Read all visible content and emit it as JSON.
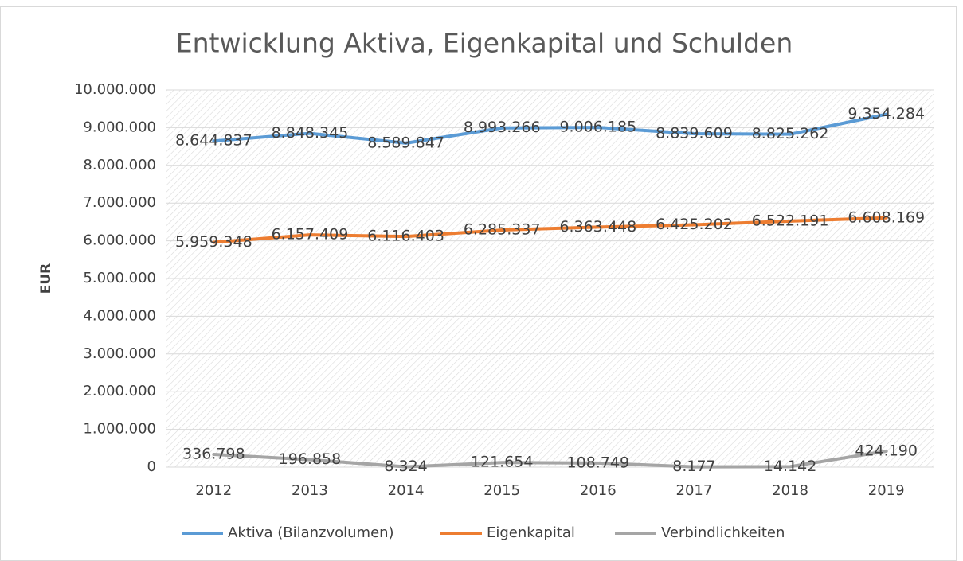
{
  "chart_data": {
    "type": "line",
    "title": "Entwicklung Aktiva, Eigenkapital und Schulden",
    "y_label": "EUR",
    "categories": [
      "2012",
      "2013",
      "2014",
      "2015",
      "2016",
      "2017",
      "2018",
      "2019"
    ],
    "series": [
      {
        "name": "Aktiva (Bilanzvolumen)",
        "color": "#5b9bd5",
        "values": [
          8644837,
          8848345,
          8589847,
          8993266,
          9006185,
          8839609,
          8825262,
          9354284
        ],
        "value_labels": [
          "8.644.837",
          "8.848.345",
          "8.589.847",
          "8.993.266",
          "9.006.185",
          "8.839.609",
          "8.825.262",
          "9.354.284"
        ]
      },
      {
        "name": "Eigenkapital",
        "color": "#ed7d31",
        "values": [
          5959348,
          6157409,
          6116403,
          6285337,
          6363448,
          6425202,
          6522191,
          6608169
        ],
        "value_labels": [
          "5.959.348",
          "6.157.409",
          "6.116.403",
          "6.285.337",
          "6.363.448",
          "6.425.202",
          "6.522.191",
          "6.608.169"
        ]
      },
      {
        "name": "Verbindlichkeiten",
        "color": "#a5a5a5",
        "values": [
          336798,
          196858,
          8324,
          121654,
          108749,
          8177,
          14142,
          424190
        ],
        "value_labels": [
          "336.798",
          "196.858",
          "8.324",
          "121.654",
          "108.749",
          "8.177",
          "14.142",
          "424.190"
        ]
      }
    ],
    "ylim": [
      0,
      10000000
    ],
    "yticks": [
      0,
      {
        "value": 1000000,
        "label": "1.000.000"
      },
      {
        "value": 2000000,
        "label": "2.000.000"
      },
      {
        "value": 3000000,
        "label": "3.000.000"
      },
      {
        "value": 4000000,
        "label": "4.000.000"
      },
      {
        "value": 5000000,
        "label": "5.000.000"
      },
      {
        "value": 6000000,
        "label": "6.000.000"
      },
      {
        "value": 7000000,
        "label": "7.000.000"
      },
      {
        "value": 8000000,
        "label": "8.000.000"
      },
      {
        "value": 9000000,
        "label": "9.000.000"
      },
      {
        "value": 10000000,
        "label": "10.000.000"
      }
    ],
    "grid": true,
    "legend": "bottom"
  }
}
